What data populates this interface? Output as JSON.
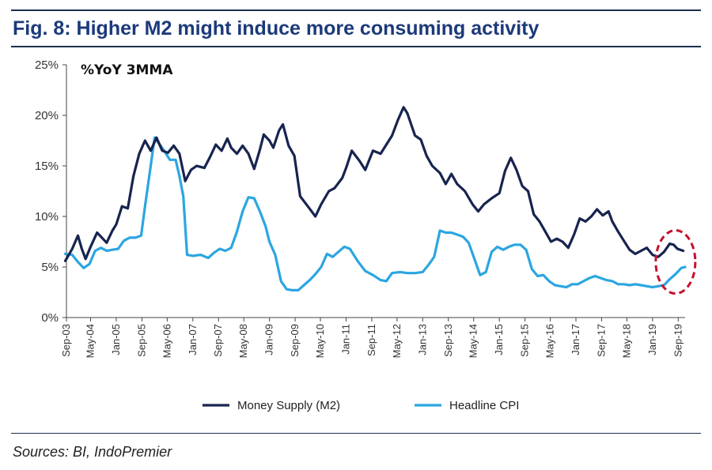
{
  "title": "Fig. 8: Higher M2 might induce more consuming activity",
  "source": "Sources: BI, IndoPremier",
  "colors": {
    "m2": "#17244f",
    "cpi": "#2ba6e1",
    "title": "#1c3a7a",
    "highlight": "#c8102e"
  },
  "chart_data": {
    "type": "line",
    "subtitle": "%YoY 3MMA",
    "ylim": [
      0,
      25
    ],
    "yticks": [
      0,
      5,
      10,
      15,
      20,
      25
    ],
    "ytick_labels": [
      "0%",
      "5%",
      "10%",
      "15%",
      "20%",
      "25%"
    ],
    "xlim": [
      2003.7,
      2019.85
    ],
    "xticks": [
      {
        "x": 2003.67,
        "label": "Sep-03"
      },
      {
        "x": 2004.33,
        "label": "May-04"
      },
      {
        "x": 2005.0,
        "label": "Jan-05"
      },
      {
        "x": 2005.67,
        "label": "Sep-05"
      },
      {
        "x": 2006.33,
        "label": "May-06"
      },
      {
        "x": 2007.0,
        "label": "Jan-07"
      },
      {
        "x": 2007.67,
        "label": "Sep-07"
      },
      {
        "x": 2008.33,
        "label": "May-08"
      },
      {
        "x": 2009.0,
        "label": "Jan-09"
      },
      {
        "x": 2009.67,
        "label": "Sep-09"
      },
      {
        "x": 2010.33,
        "label": "May-10"
      },
      {
        "x": 2011.0,
        "label": "Jan-11"
      },
      {
        "x": 2011.67,
        "label": "Sep-11"
      },
      {
        "x": 2012.33,
        "label": "May-12"
      },
      {
        "x": 2013.0,
        "label": "Jan-13"
      },
      {
        "x": 2013.67,
        "label": "Sep-13"
      },
      {
        "x": 2014.33,
        "label": "May-14"
      },
      {
        "x": 2015.0,
        "label": "Jan-15"
      },
      {
        "x": 2015.67,
        "label": "Sep-15"
      },
      {
        "x": 2016.33,
        "label": "May-16"
      },
      {
        "x": 2017.0,
        "label": "Jan-17"
      },
      {
        "x": 2017.67,
        "label": "Sep-17"
      },
      {
        "x": 2018.33,
        "label": "May-18"
      },
      {
        "x": 2019.0,
        "label": "Jan-19"
      },
      {
        "x": 2019.67,
        "label": "Sep-19"
      }
    ],
    "series": [
      {
        "name": "Money Supply (M2)",
        "color": "#17244f",
        "points": [
          [
            2003.67,
            5.6
          ],
          [
            2003.85,
            6.8
          ],
          [
            2004.0,
            8.1
          ],
          [
            2004.1,
            6.8
          ],
          [
            2004.2,
            5.8
          ],
          [
            2004.33,
            7.0
          ],
          [
            2004.5,
            8.4
          ],
          [
            2004.6,
            8.0
          ],
          [
            2004.75,
            7.4
          ],
          [
            2004.9,
            8.6
          ],
          [
            2005.0,
            9.2
          ],
          [
            2005.15,
            11.0
          ],
          [
            2005.3,
            10.8
          ],
          [
            2005.45,
            14.0
          ],
          [
            2005.6,
            16.2
          ],
          [
            2005.75,
            17.5
          ],
          [
            2005.9,
            16.5
          ],
          [
            2006.05,
            17.8
          ],
          [
            2006.2,
            16.5
          ],
          [
            2006.35,
            16.3
          ],
          [
            2006.5,
            17.0
          ],
          [
            2006.65,
            16.2
          ],
          [
            2006.8,
            13.5
          ],
          [
            2006.95,
            14.6
          ],
          [
            2007.1,
            15.0
          ],
          [
            2007.3,
            14.8
          ],
          [
            2007.45,
            15.9
          ],
          [
            2007.6,
            17.1
          ],
          [
            2007.75,
            16.5
          ],
          [
            2007.9,
            17.7
          ],
          [
            2008.0,
            16.8
          ],
          [
            2008.15,
            16.2
          ],
          [
            2008.3,
            17.0
          ],
          [
            2008.45,
            16.2
          ],
          [
            2008.6,
            14.7
          ],
          [
            2008.75,
            16.6
          ],
          [
            2008.85,
            18.1
          ],
          [
            2009.0,
            17.5
          ],
          [
            2009.1,
            16.8
          ],
          [
            2009.25,
            18.5
          ],
          [
            2009.35,
            19.1
          ],
          [
            2009.5,
            17.0
          ],
          [
            2009.65,
            16.0
          ],
          [
            2009.8,
            12.0
          ],
          [
            2010.0,
            11.0
          ],
          [
            2010.2,
            10.0
          ],
          [
            2010.35,
            11.2
          ],
          [
            2010.55,
            12.5
          ],
          [
            2010.7,
            12.8
          ],
          [
            2010.9,
            13.8
          ],
          [
            2011.0,
            14.8
          ],
          [
            2011.15,
            16.5
          ],
          [
            2011.35,
            15.5
          ],
          [
            2011.5,
            14.6
          ],
          [
            2011.7,
            16.5
          ],
          [
            2011.9,
            16.2
          ],
          [
            2012.0,
            16.8
          ],
          [
            2012.2,
            18.0
          ],
          [
            2012.35,
            19.5
          ],
          [
            2012.5,
            20.8
          ],
          [
            2012.6,
            20.2
          ],
          [
            2012.8,
            18.0
          ],
          [
            2012.95,
            17.6
          ],
          [
            2013.1,
            16.0
          ],
          [
            2013.25,
            15.0
          ],
          [
            2013.45,
            14.3
          ],
          [
            2013.6,
            13.2
          ],
          [
            2013.75,
            14.2
          ],
          [
            2013.9,
            13.2
          ],
          [
            2014.1,
            12.5
          ],
          [
            2014.3,
            11.2
          ],
          [
            2014.45,
            10.5
          ],
          [
            2014.6,
            11.2
          ],
          [
            2014.8,
            11.8
          ],
          [
            2015.0,
            12.3
          ],
          [
            2015.15,
            14.5
          ],
          [
            2015.3,
            15.8
          ],
          [
            2015.45,
            14.6
          ],
          [
            2015.6,
            13.0
          ],
          [
            2015.75,
            12.5
          ],
          [
            2015.9,
            10.2
          ],
          [
            2016.05,
            9.5
          ],
          [
            2016.2,
            8.5
          ],
          [
            2016.35,
            7.5
          ],
          [
            2016.5,
            7.8
          ],
          [
            2016.65,
            7.5
          ],
          [
            2016.8,
            6.9
          ],
          [
            2016.95,
            8.2
          ],
          [
            2017.1,
            9.8
          ],
          [
            2017.25,
            9.5
          ],
          [
            2017.4,
            10.0
          ],
          [
            2017.55,
            10.7
          ],
          [
            2017.7,
            10.1
          ],
          [
            2017.85,
            10.5
          ],
          [
            2017.95,
            9.5
          ],
          [
            2018.1,
            8.5
          ],
          [
            2018.25,
            7.6
          ],
          [
            2018.4,
            6.7
          ],
          [
            2018.55,
            6.3
          ],
          [
            2018.7,
            6.6
          ],
          [
            2018.85,
            6.9
          ],
          [
            2019.0,
            6.2
          ],
          [
            2019.15,
            6.0
          ],
          [
            2019.3,
            6.5
          ],
          [
            2019.45,
            7.3
          ],
          [
            2019.55,
            7.2
          ],
          [
            2019.65,
            6.8
          ],
          [
            2019.8,
            6.6
          ]
        ]
      },
      {
        "name": "Headline CPI",
        "color": "#2ba6e1",
        "points": [
          [
            2003.67,
            6.3
          ],
          [
            2003.85,
            6.2
          ],
          [
            2004.0,
            5.5
          ],
          [
            2004.15,
            4.9
          ],
          [
            2004.3,
            5.3
          ],
          [
            2004.45,
            6.6
          ],
          [
            2004.6,
            6.9
          ],
          [
            2004.75,
            6.6
          ],
          [
            2004.9,
            6.7
          ],
          [
            2005.05,
            6.8
          ],
          [
            2005.2,
            7.6
          ],
          [
            2005.35,
            7.9
          ],
          [
            2005.5,
            7.9
          ],
          [
            2005.65,
            8.1
          ],
          [
            2005.75,
            11.0
          ],
          [
            2005.9,
            15.0
          ],
          [
            2006.0,
            17.8
          ],
          [
            2006.1,
            17.3
          ],
          [
            2006.25,
            16.5
          ],
          [
            2006.4,
            15.6
          ],
          [
            2006.55,
            15.6
          ],
          [
            2006.65,
            14.0
          ],
          [
            2006.75,
            12.0
          ],
          [
            2006.85,
            6.2
          ],
          [
            2007.0,
            6.1
          ],
          [
            2007.2,
            6.2
          ],
          [
            2007.4,
            5.9
          ],
          [
            2007.55,
            6.4
          ],
          [
            2007.7,
            6.8
          ],
          [
            2007.85,
            6.6
          ],
          [
            2008.0,
            6.9
          ],
          [
            2008.15,
            8.5
          ],
          [
            2008.3,
            10.5
          ],
          [
            2008.45,
            11.9
          ],
          [
            2008.6,
            11.8
          ],
          [
            2008.75,
            10.5
          ],
          [
            2008.9,
            9.0
          ],
          [
            2009.0,
            7.5
          ],
          [
            2009.15,
            6.2
          ],
          [
            2009.3,
            3.6
          ],
          [
            2009.45,
            2.8
          ],
          [
            2009.6,
            2.7
          ],
          [
            2009.75,
            2.7
          ],
          [
            2009.9,
            3.2
          ],
          [
            2010.05,
            3.7
          ],
          [
            2010.2,
            4.3
          ],
          [
            2010.35,
            5.0
          ],
          [
            2010.5,
            6.3
          ],
          [
            2010.65,
            6.0
          ],
          [
            2010.8,
            6.5
          ],
          [
            2010.95,
            7.0
          ],
          [
            2011.1,
            6.8
          ],
          [
            2011.3,
            5.6
          ],
          [
            2011.5,
            4.6
          ],
          [
            2011.7,
            4.2
          ],
          [
            2011.9,
            3.7
          ],
          [
            2012.05,
            3.6
          ],
          [
            2012.2,
            4.4
          ],
          [
            2012.4,
            4.5
          ],
          [
            2012.6,
            4.4
          ],
          [
            2012.8,
            4.4
          ],
          [
            2013.0,
            4.5
          ],
          [
            2013.15,
            5.2
          ],
          [
            2013.3,
            6.0
          ],
          [
            2013.45,
            8.6
          ],
          [
            2013.6,
            8.4
          ],
          [
            2013.75,
            8.4
          ],
          [
            2013.9,
            8.2
          ],
          [
            2014.05,
            8.0
          ],
          [
            2014.2,
            7.4
          ],
          [
            2014.35,
            5.8
          ],
          [
            2014.5,
            4.2
          ],
          [
            2014.65,
            4.5
          ],
          [
            2014.8,
            6.5
          ],
          [
            2014.95,
            7.0
          ],
          [
            2015.1,
            6.7
          ],
          [
            2015.25,
            7.0
          ],
          [
            2015.4,
            7.2
          ],
          [
            2015.55,
            7.2
          ],
          [
            2015.7,
            6.7
          ],
          [
            2015.85,
            4.8
          ],
          [
            2016.0,
            4.1
          ],
          [
            2016.15,
            4.2
          ],
          [
            2016.3,
            3.6
          ],
          [
            2016.45,
            3.2
          ],
          [
            2016.6,
            3.1
          ],
          [
            2016.75,
            3.0
          ],
          [
            2016.9,
            3.3
          ],
          [
            2017.05,
            3.3
          ],
          [
            2017.2,
            3.6
          ],
          [
            2017.35,
            3.9
          ],
          [
            2017.5,
            4.1
          ],
          [
            2017.65,
            3.9
          ],
          [
            2017.8,
            3.7
          ],
          [
            2017.95,
            3.6
          ],
          [
            2018.1,
            3.3
          ],
          [
            2018.25,
            3.3
          ],
          [
            2018.4,
            3.2
          ],
          [
            2018.55,
            3.3
          ],
          [
            2018.7,
            3.2
          ],
          [
            2018.85,
            3.1
          ],
          [
            2019.0,
            3.0
          ],
          [
            2019.15,
            3.1
          ],
          [
            2019.3,
            3.2
          ],
          [
            2019.45,
            3.8
          ],
          [
            2019.6,
            4.3
          ],
          [
            2019.75,
            4.9
          ],
          [
            2019.85,
            5.0
          ]
        ]
      }
    ],
    "legend": [
      {
        "label": "Money Supply (M2)",
        "color": "#17244f"
      },
      {
        "label": "Headline CPI",
        "color": "#2ba6e1"
      }
    ],
    "legend_position": "bottom-center",
    "annotation": {
      "type": "dashed-ellipse",
      "color": "#c8102e",
      "x": 2019.6,
      "y": 5.5
    },
    "grid": false
  }
}
